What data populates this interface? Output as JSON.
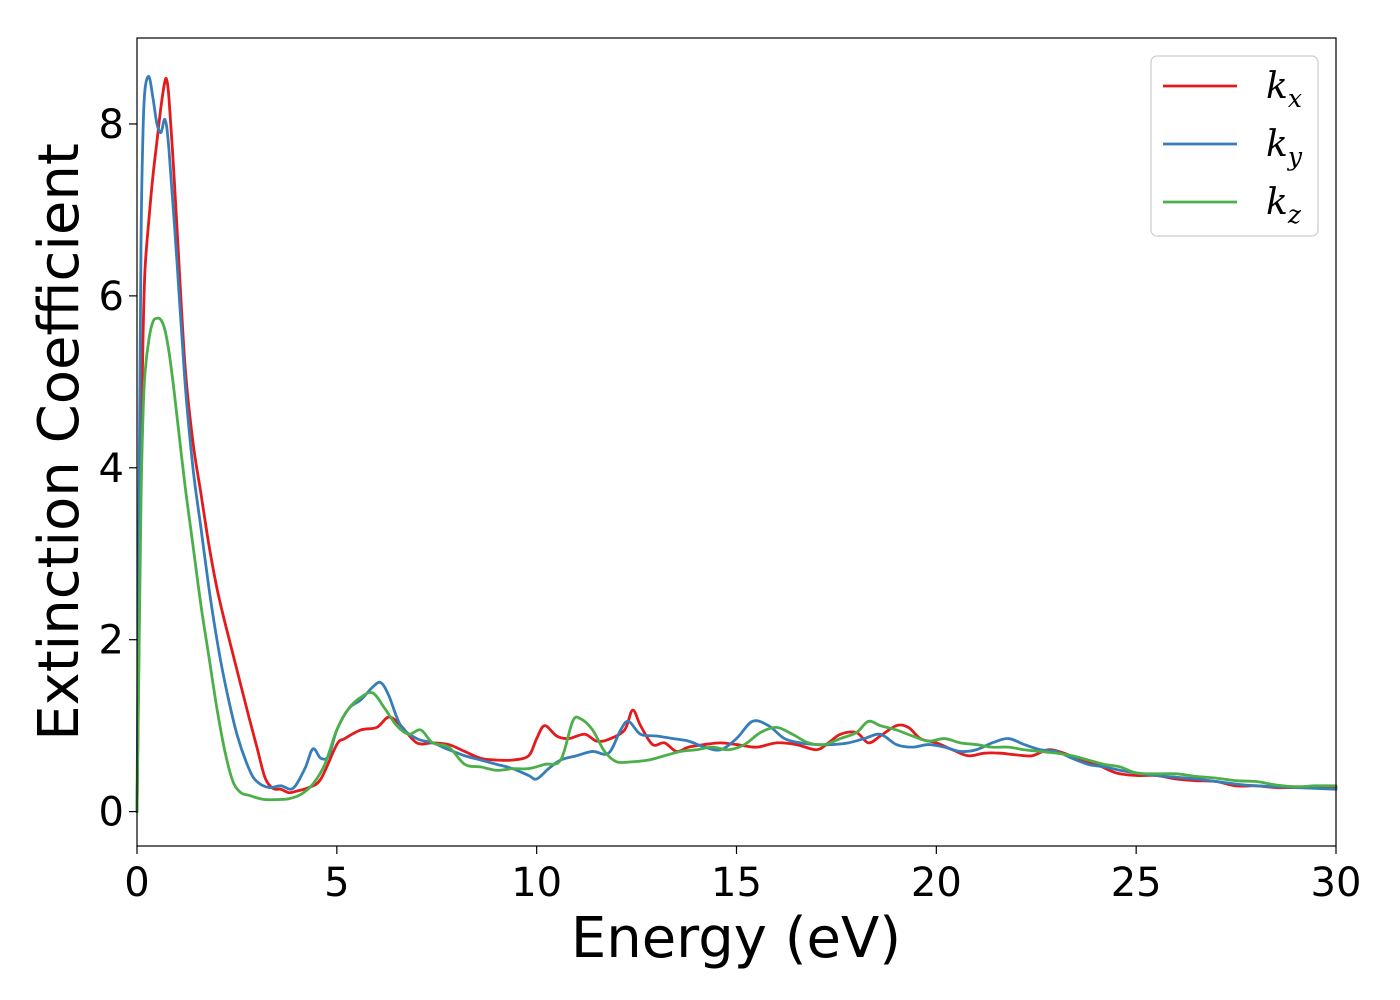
{
  "chart_data": {
    "type": "line",
    "xlabel": "Energy (eV)",
    "ylabel": "Extinction Coefficient",
    "xlim": [
      0,
      30
    ],
    "ylim": [
      -0.4,
      9.0
    ],
    "xticks": [
      0,
      5,
      10,
      15,
      20,
      25,
      30
    ],
    "yticks": [
      0,
      2,
      4,
      6,
      8
    ],
    "grid": false,
    "legend_position": "top-right",
    "series": [
      {
        "name": "k_x",
        "label_base": "k",
        "label_sub": "x",
        "color": "#e41a1c",
        "x": [
          0,
          0.05,
          0.1,
          0.15,
          0.2,
          0.3,
          0.4,
          0.5,
          0.6,
          0.7,
          0.75,
          0.8,
          0.9,
          1.0,
          1.2,
          1.4,
          1.6,
          1.8,
          2.0,
          2.2,
          2.5,
          2.8,
          3.0,
          3.2,
          3.4,
          3.6,
          3.8,
          4.0,
          4.3,
          4.6,
          5.0,
          5.2,
          5.6,
          6.0,
          6.3,
          6.6,
          7.0,
          7.4,
          7.8,
          8.2,
          8.6,
          9.0,
          9.4,
          9.8,
          10.0,
          10.2,
          10.5,
          10.8,
          11.2,
          11.5,
          11.8,
          12.2,
          12.4,
          12.6,
          12.9,
          13.2,
          13.5,
          13.8,
          14.2,
          14.6,
          15.0,
          15.5,
          16.0,
          16.5,
          17.0,
          17.3,
          17.6,
          18.0,
          18.3,
          18.6,
          19.0,
          19.3,
          19.6,
          20.0,
          20.4,
          20.8,
          21.2,
          21.6,
          22.0,
          22.4,
          22.8,
          23.2,
          23.6,
          24.0,
          24.5,
          25.0,
          25.5,
          26.0,
          26.5,
          27.0,
          27.5,
          28.0,
          28.5,
          29.0,
          29.5,
          30.0
        ],
        "y": [
          0.0,
          2.0,
          4.2,
          5.5,
          6.3,
          6.9,
          7.4,
          7.8,
          8.2,
          8.5,
          8.5,
          8.3,
          7.6,
          6.8,
          5.2,
          4.3,
          3.7,
          3.1,
          2.6,
          2.2,
          1.65,
          1.1,
          0.75,
          0.4,
          0.27,
          0.26,
          0.22,
          0.24,
          0.28,
          0.38,
          0.78,
          0.85,
          0.95,
          0.98,
          1.1,
          1.0,
          0.8,
          0.8,
          0.78,
          0.7,
          0.62,
          0.6,
          0.6,
          0.65,
          0.85,
          1.0,
          0.88,
          0.85,
          0.9,
          0.82,
          0.84,
          0.95,
          1.18,
          1.0,
          0.78,
          0.8,
          0.7,
          0.75,
          0.78,
          0.8,
          0.78,
          0.75,
          0.8,
          0.78,
          0.72,
          0.8,
          0.9,
          0.92,
          0.8,
          0.88,
          1.0,
          0.98,
          0.85,
          0.8,
          0.72,
          0.65,
          0.68,
          0.68,
          0.66,
          0.65,
          0.72,
          0.68,
          0.6,
          0.55,
          0.45,
          0.42,
          0.42,
          0.38,
          0.36,
          0.35,
          0.3,
          0.3,
          0.28,
          0.28,
          0.28,
          0.28
        ]
      },
      {
        "name": "k_y",
        "label_base": "k",
        "label_sub": "y",
        "color": "#377eb8",
        "x": [
          0,
          0.05,
          0.1,
          0.15,
          0.2,
          0.3,
          0.4,
          0.5,
          0.6,
          0.7,
          0.8,
          1.0,
          1.2,
          1.4,
          1.6,
          1.8,
          2.0,
          2.2,
          2.5,
          2.8,
          3.0,
          3.3,
          3.6,
          3.9,
          4.2,
          4.4,
          4.6,
          4.8,
          5.0,
          5.3,
          5.6,
          5.9,
          6.1,
          6.3,
          6.6,
          7.0,
          7.4,
          7.8,
          8.2,
          8.6,
          9.0,
          9.4,
          9.8,
          10.0,
          10.3,
          10.6,
          11.0,
          11.4,
          11.8,
          12.1,
          12.3,
          12.6,
          13.0,
          13.4,
          13.8,
          14.2,
          14.6,
          15.0,
          15.4,
          15.8,
          16.2,
          16.6,
          17.0,
          17.4,
          17.8,
          18.2,
          18.6,
          19.0,
          19.4,
          19.8,
          20.2,
          20.6,
          21.0,
          21.4,
          21.8,
          22.2,
          22.6,
          23.0,
          23.4,
          23.8,
          24.2,
          24.6,
          25.0,
          25.5,
          26.0,
          26.5,
          27.0,
          27.5,
          28.0,
          28.5,
          29.0,
          29.5,
          30.0
        ],
        "y": [
          0.0,
          3.5,
          6.6,
          7.9,
          8.4,
          8.55,
          8.3,
          8.0,
          7.9,
          8.05,
          7.7,
          6.4,
          5.0,
          4.0,
          3.3,
          2.6,
          2.0,
          1.5,
          0.9,
          0.5,
          0.35,
          0.28,
          0.3,
          0.27,
          0.5,
          0.73,
          0.62,
          0.65,
          0.95,
          1.2,
          1.3,
          1.45,
          1.5,
          1.35,
          1.0,
          0.85,
          0.8,
          0.72,
          0.65,
          0.6,
          0.55,
          0.5,
          0.42,
          0.38,
          0.5,
          0.6,
          0.65,
          0.7,
          0.68,
          0.95,
          1.05,
          0.9,
          0.88,
          0.85,
          0.82,
          0.75,
          0.72,
          0.85,
          1.05,
          1.0,
          0.85,
          0.8,
          0.78,
          0.78,
          0.8,
          0.85,
          0.9,
          0.78,
          0.75,
          0.78,
          0.75,
          0.7,
          0.72,
          0.8,
          0.85,
          0.78,
          0.72,
          0.7,
          0.62,
          0.55,
          0.52,
          0.48,
          0.45,
          0.42,
          0.4,
          0.38,
          0.35,
          0.32,
          0.3,
          0.29,
          0.28,
          0.27,
          0.26
        ]
      },
      {
        "name": "k_z",
        "label_base": "k",
        "label_sub": "z",
        "color": "#4daf4a",
        "x": [
          0,
          0.05,
          0.1,
          0.15,
          0.2,
          0.3,
          0.4,
          0.5,
          0.6,
          0.7,
          0.8,
          0.9,
          1.0,
          1.2,
          1.4,
          1.6,
          1.8,
          2.0,
          2.2,
          2.4,
          2.6,
          2.8,
          3.0,
          3.2,
          3.5,
          3.8,
          4.1,
          4.4,
          4.7,
          5.0,
          5.3,
          5.6,
          5.9,
          6.2,
          6.5,
          6.8,
          7.1,
          7.4,
          7.8,
          8.2,
          8.6,
          9.0,
          9.4,
          9.8,
          10.2,
          10.6,
          10.9,
          11.1,
          11.4,
          11.7,
          12.0,
          12.4,
          12.8,
          13.2,
          13.6,
          14.0,
          14.4,
          14.8,
          15.2,
          15.6,
          16.0,
          16.4,
          16.8,
          17.2,
          17.6,
          18.0,
          18.3,
          18.6,
          19.0,
          19.4,
          19.8,
          20.2,
          20.6,
          21.0,
          21.4,
          21.8,
          22.2,
          22.6,
          23.0,
          23.4,
          23.8,
          24.2,
          24.6,
          25.0,
          25.5,
          26.0,
          26.5,
          27.0,
          27.5,
          28.0,
          28.5,
          29.0,
          29.5,
          30.0
        ],
        "y": [
          0.0,
          1.8,
          3.6,
          4.6,
          5.1,
          5.5,
          5.7,
          5.74,
          5.72,
          5.6,
          5.35,
          5.0,
          4.6,
          3.8,
          3.1,
          2.4,
          1.8,
          1.2,
          0.7,
          0.35,
          0.22,
          0.19,
          0.16,
          0.14,
          0.14,
          0.15,
          0.2,
          0.32,
          0.55,
          0.95,
          1.2,
          1.33,
          1.38,
          1.2,
          1.0,
          0.9,
          0.95,
          0.8,
          0.75,
          0.55,
          0.52,
          0.48,
          0.5,
          0.5,
          0.55,
          0.6,
          1.05,
          1.08,
          0.95,
          0.7,
          0.58,
          0.58,
          0.6,
          0.65,
          0.7,
          0.72,
          0.75,
          0.72,
          0.78,
          0.92,
          0.98,
          0.9,
          0.8,
          0.78,
          0.85,
          0.92,
          1.05,
          1.0,
          0.95,
          0.88,
          0.82,
          0.85,
          0.8,
          0.78,
          0.75,
          0.75,
          0.72,
          0.7,
          0.68,
          0.65,
          0.6,
          0.55,
          0.52,
          0.45,
          0.44,
          0.44,
          0.41,
          0.39,
          0.36,
          0.35,
          0.31,
          0.29,
          0.3,
          0.3
        ]
      }
    ]
  }
}
